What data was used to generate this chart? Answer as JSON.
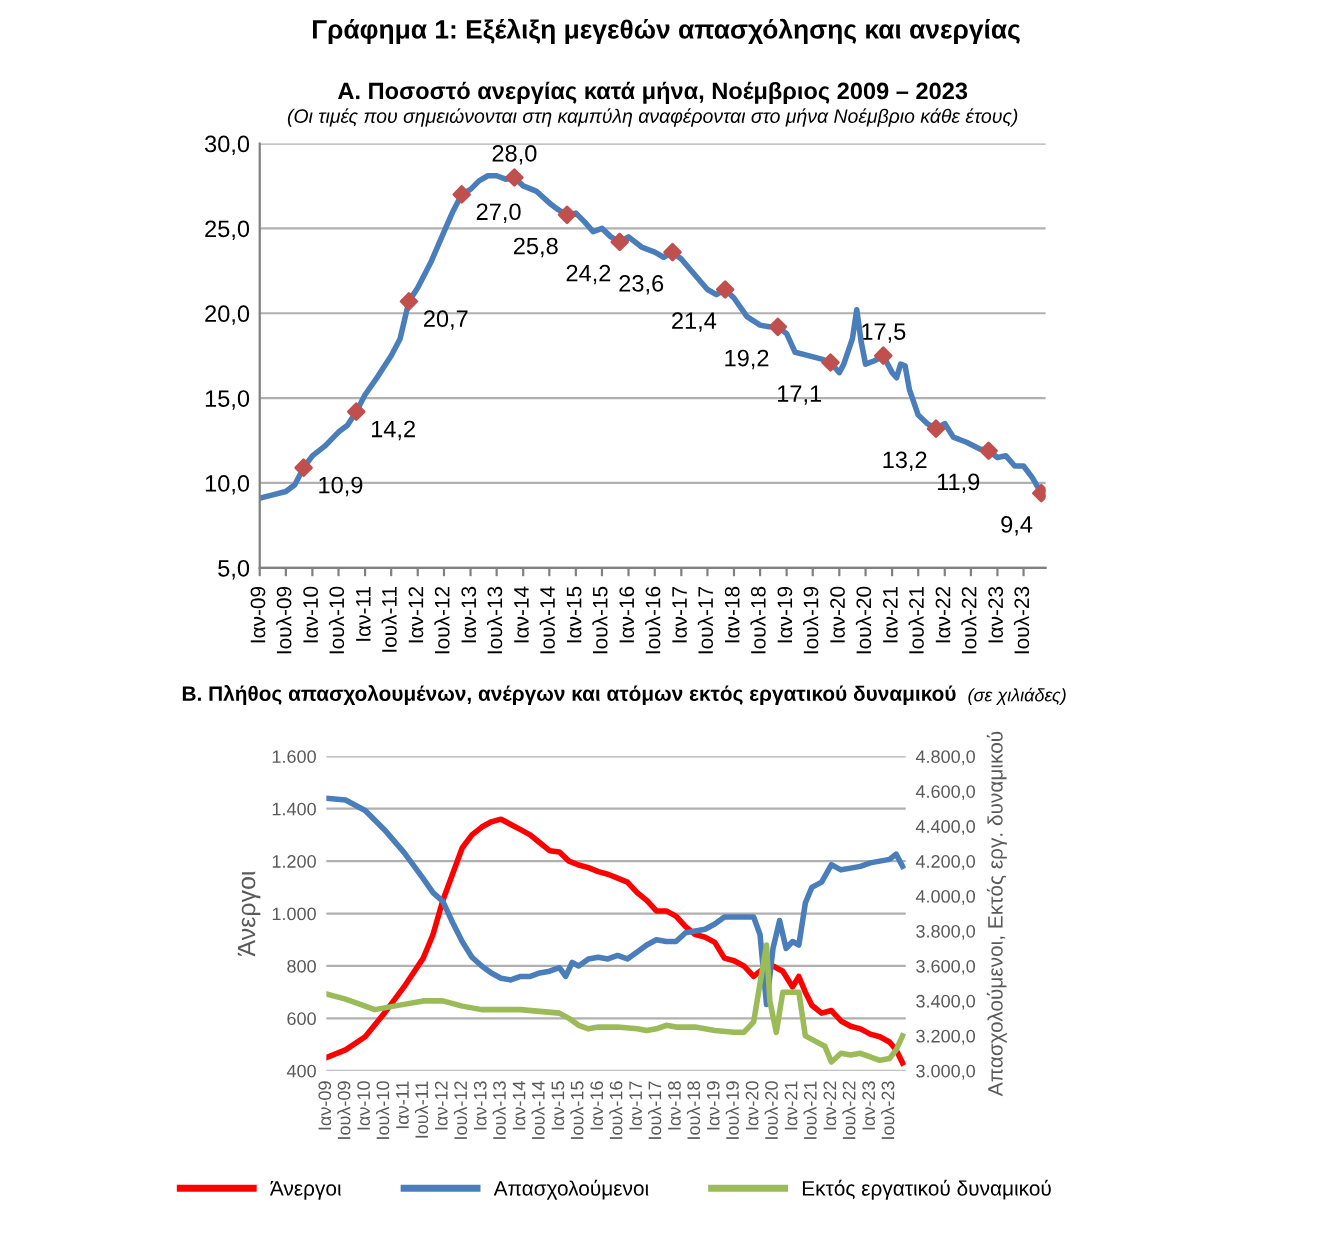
{
  "chart_data": [
    {
      "type": "line",
      "title": "Α. Ποσοστό ανεργίας κατά μήνα, Νοέμβριος 2009 – 2023",
      "subtitle": "(Οι τιμές που σημειώνονται στη καμπύλη αναφέρονται στο μήνα Νοέμβριο κάθε έτους)",
      "annotations": [
        "Γράφημα 1: Εξέλιξη μεγεθών απασχόλησης και ανεργίας"
      ],
      "grid": "y",
      "legend": false,
      "xlim": [
        "2009-01",
        "2023-12"
      ],
      "xticks": [
        {
          "value": "2009-01",
          "label": "Ιαν-09"
        },
        {
          "value": "2009-07",
          "label": "Ιουλ-09"
        },
        {
          "value": "2010-01",
          "label": "Ιαν-10"
        },
        {
          "value": "2010-07",
          "label": "Ιουλ-10"
        },
        {
          "value": "2011-01",
          "label": "Ιαν-11"
        },
        {
          "value": "2011-07",
          "label": "Ιουλ-11"
        },
        {
          "value": "2012-01",
          "label": "Ιαν-12"
        },
        {
          "value": "2012-07",
          "label": "Ιουλ-12"
        },
        {
          "value": "2013-01",
          "label": "Ιαν-13"
        },
        {
          "value": "2013-07",
          "label": "Ιουλ-13"
        },
        {
          "value": "2014-01",
          "label": "Ιαν-14"
        },
        {
          "value": "2014-07",
          "label": "Ιουλ-14"
        },
        {
          "value": "2015-01",
          "label": "Ιαν-15"
        },
        {
          "value": "2015-07",
          "label": "Ιουλ-15"
        },
        {
          "value": "2016-01",
          "label": "Ιαν-16"
        },
        {
          "value": "2016-07",
          "label": "Ιουλ-16"
        },
        {
          "value": "2017-01",
          "label": "Ιαν-17"
        },
        {
          "value": "2017-07",
          "label": "Ιουλ-17"
        },
        {
          "value": "2018-01",
          "label": "Ιαν-18"
        },
        {
          "value": "2018-07",
          "label": "Ιουλ-18"
        },
        {
          "value": "2019-01",
          "label": "Ιαν-19"
        },
        {
          "value": "2019-07",
          "label": "Ιουλ-19"
        },
        {
          "value": "2020-01",
          "label": "Ιαν-20"
        },
        {
          "value": "2020-07",
          "label": "Ιουλ-20"
        },
        {
          "value": "2021-01",
          "label": "Ιαν-21"
        },
        {
          "value": "2021-07",
          "label": "Ιουλ-21"
        },
        {
          "value": "2022-01",
          "label": "Ιαν-22"
        },
        {
          "value": "2022-07",
          "label": "Ιουλ-22"
        },
        {
          "value": "2023-01",
          "label": "Ιαν-23"
        },
        {
          "value": "2023-07",
          "label": "Ιουλ-23"
        }
      ],
      "ylim": [
        5,
        30
      ],
      "yticks": [
        {
          "value": 5,
          "label": "5,0"
        },
        {
          "value": 10,
          "label": "10,0"
        },
        {
          "value": 15,
          "label": "15,0"
        },
        {
          "value": 20,
          "label": "20,0"
        },
        {
          "value": 25,
          "label": "25,0"
        },
        {
          "value": 30,
          "label": "30,0"
        }
      ],
      "series": [
        {
          "color": "#4a7ebb",
          "x": [
            "2009-01",
            "2009-04",
            "2009-07",
            "2009-09",
            "2009-11",
            "2010-01",
            "2010-04",
            "2010-07",
            "2010-09",
            "2010-11",
            "2011-01",
            "2011-04",
            "2011-07",
            "2011-09",
            "2011-11",
            "2012-01",
            "2012-04",
            "2012-07",
            "2012-09",
            "2012-11",
            "2013-01",
            "2013-03",
            "2013-05",
            "2013-07",
            "2013-09",
            "2013-11",
            "2014-01",
            "2014-04",
            "2014-07",
            "2014-09",
            "2014-11",
            "2015-01",
            "2015-03",
            "2015-05",
            "2015-07",
            "2015-09",
            "2015-11",
            "2016-01",
            "2016-04",
            "2016-07",
            "2016-09",
            "2016-11",
            "2017-01",
            "2017-04",
            "2017-07",
            "2017-09",
            "2017-11",
            "2018-01",
            "2018-04",
            "2018-07",
            "2018-09",
            "2018-11",
            "2019-01",
            "2019-03",
            "2019-06",
            "2019-09",
            "2019-11",
            "2020-01",
            "2020-02",
            "2020-04",
            "2020-05",
            "2020-06",
            "2020-07",
            "2020-09",
            "2020-11",
            "2021-01",
            "2021-02",
            "2021-03",
            "2021-04",
            "2021-05",
            "2021-07",
            "2021-09",
            "2021-11",
            "2022-01",
            "2022-03",
            "2022-06",
            "2022-09",
            "2022-11",
            "2023-01",
            "2023-03",
            "2023-05",
            "2023-07",
            "2023-09",
            "2023-11"
          ],
          "values": [
            9.1,
            9.3,
            9.5,
            9.9,
            10.9,
            11.6,
            12.2,
            13.0,
            13.4,
            14.2,
            15.2,
            16.3,
            17.5,
            18.5,
            20.7,
            21.5,
            23.0,
            24.8,
            26.0,
            27.0,
            27.3,
            27.8,
            28.1,
            28.1,
            27.9,
            28.0,
            27.5,
            27.2,
            26.5,
            26.1,
            25.8,
            25.9,
            25.4,
            24.8,
            25.0,
            24.5,
            24.2,
            24.5,
            23.9,
            23.6,
            23.3,
            23.6,
            23.2,
            22.3,
            21.4,
            21.1,
            21.4,
            20.9,
            19.8,
            19.3,
            19.2,
            19.2,
            18.8,
            17.7,
            17.5,
            17.3,
            17.1,
            16.5,
            17.0,
            18.5,
            20.2,
            18.3,
            17.0,
            17.2,
            17.5,
            16.5,
            16.2,
            17.0,
            16.9,
            15.5,
            14.0,
            13.5,
            13.2,
            13.5,
            12.7,
            12.4,
            12.0,
            11.9,
            11.5,
            11.6,
            11.0,
            11.0,
            10.3,
            9.4
          ]
        },
        {
          "type": "scatter",
          "color": "#c0504d",
          "marker": "diamond",
          "x": [
            "2009-11",
            "2010-11",
            "2011-11",
            "2012-11",
            "2013-11",
            "2014-11",
            "2015-11",
            "2016-11",
            "2017-11",
            "2018-11",
            "2019-11",
            "2020-11",
            "2021-11",
            "2022-11",
            "2023-11"
          ],
          "values": [
            10.9,
            14.2,
            20.7,
            27.0,
            28.0,
            25.8,
            24.2,
            23.6,
            21.4,
            19.2,
            17.1,
            17.5,
            13.2,
            11.9,
            9.4
          ],
          "value_labels": [
            "10,9",
            "14,2",
            "20,7",
            "27,0",
            "28,0",
            "25,8",
            "24,2",
            "23,6",
            "21,4",
            "19,2",
            "17,1",
            "17,5",
            "13,2",
            "11,9",
            "9,4"
          ]
        }
      ]
    },
    {
      "type": "line",
      "title": "Β. Πλήθος απασχολουμένων, ανέργων και ατόμων εκτός εργατικού δυναμικού",
      "subtitle": "(σε χιλιάδες)",
      "ylabel": "Άνεργοι",
      "y2label": "Απασχολούμενοι, Εκτός εργ. δυναμικού",
      "grid": "y",
      "legend": "bottom",
      "xlim": [
        "2009-01",
        "2023-12"
      ],
      "xticks": [
        {
          "value": "2009-01",
          "label": "Ιαν-09"
        },
        {
          "value": "2009-07",
          "label": "Ιουλ-09"
        },
        {
          "value": "2010-01",
          "label": "Ιαν-10"
        },
        {
          "value": "2010-07",
          "label": "Ιουλ-10"
        },
        {
          "value": "2011-01",
          "label": "Ιαν-11"
        },
        {
          "value": "2011-07",
          "label": "Ιουλ-11"
        },
        {
          "value": "2012-01",
          "label": "Ιαν-12"
        },
        {
          "value": "2012-07",
          "label": "Ιουλ-12"
        },
        {
          "value": "2013-01",
          "label": "Ιαν-13"
        },
        {
          "value": "2013-07",
          "label": "Ιουλ-13"
        },
        {
          "value": "2014-01",
          "label": "Ιαν-14"
        },
        {
          "value": "2014-07",
          "label": "Ιουλ-14"
        },
        {
          "value": "2015-01",
          "label": "Ιαν-15"
        },
        {
          "value": "2015-07",
          "label": "Ιουλ-15"
        },
        {
          "value": "2016-01",
          "label": "Ιαν-16"
        },
        {
          "value": "2016-07",
          "label": "Ιουλ-16"
        },
        {
          "value": "2017-01",
          "label": "Ιαν-17"
        },
        {
          "value": "2017-07",
          "label": "Ιουλ-17"
        },
        {
          "value": "2018-01",
          "label": "Ιαν-18"
        },
        {
          "value": "2018-07",
          "label": "Ιουλ-18"
        },
        {
          "value": "2019-01",
          "label": "Ιαν-19"
        },
        {
          "value": "2019-07",
          "label": "Ιουλ-19"
        },
        {
          "value": "2020-01",
          "label": "Ιαν-20"
        },
        {
          "value": "2020-07",
          "label": "Ιουλ-20"
        },
        {
          "value": "2021-01",
          "label": "Ιαν-21"
        },
        {
          "value": "2021-07",
          "label": "Ιουλ-21"
        },
        {
          "value": "2022-01",
          "label": "Ιαν-22"
        },
        {
          "value": "2022-07",
          "label": "Ιουλ-22"
        },
        {
          "value": "2023-01",
          "label": "Ιαν-23"
        },
        {
          "value": "2023-07",
          "label": "Ιουλ-23"
        }
      ],
      "ylim": [
        400,
        1600
      ],
      "yticks": [
        {
          "value": 400,
          "label": "400"
        },
        {
          "value": 600,
          "label": "600"
        },
        {
          "value": 800,
          "label": "800"
        },
        {
          "value": 1000,
          "label": "1.000"
        },
        {
          "value": 1200,
          "label": "1.200"
        },
        {
          "value": 1400,
          "label": "1.400"
        },
        {
          "value": 1600,
          "label": "1.600"
        }
      ],
      "y2lim": [
        3000,
        4800
      ],
      "y2ticks": [
        {
          "value": 3000,
          "label": "3.000,0"
        },
        {
          "value": 3200,
          "label": "3.200,0"
        },
        {
          "value": 3400,
          "label": "3.400,0"
        },
        {
          "value": 3600,
          "label": "3.600,0"
        },
        {
          "value": 3800,
          "label": "3.800,0"
        },
        {
          "value": 4000,
          "label": "4.000,0"
        },
        {
          "value": 4200,
          "label": "4.200,0"
        },
        {
          "value": 4400,
          "label": "4.400,0"
        },
        {
          "value": 4600,
          "label": "4.600,0"
        },
        {
          "value": 4800,
          "label": "4.800,0"
        }
      ],
      "series": [
        {
          "type": "line",
          "name": "Άνεργοι",
          "color": "#ff0000",
          "x": [
            "2009-01",
            "2009-07",
            "2010-01",
            "2010-07",
            "2011-01",
            "2011-07",
            "2011-10",
            "2012-01",
            "2012-04",
            "2012-07",
            "2012-10",
            "2013-01",
            "2013-04",
            "2013-07",
            "2013-10",
            "2014-01",
            "2014-04",
            "2014-07",
            "2014-10",
            "2015-01",
            "2015-04",
            "2015-07",
            "2015-10",
            "2016-01",
            "2016-04",
            "2016-07",
            "2016-10",
            "2017-01",
            "2017-04",
            "2017-07",
            "2017-10",
            "2018-01",
            "2018-04",
            "2018-07",
            "2018-10",
            "2019-01",
            "2019-04",
            "2019-07",
            "2019-10",
            "2020-01",
            "2020-04",
            "2020-07",
            "2020-10",
            "2021-01",
            "2021-03",
            "2021-05",
            "2021-07",
            "2021-10",
            "2022-01",
            "2022-04",
            "2022-07",
            "2022-10",
            "2023-01",
            "2023-04",
            "2023-07",
            "2023-09",
            "2023-11"
          ],
          "values": [
            450,
            480,
            530,
            620,
            720,
            830,
            920,
            1050,
            1150,
            1250,
            1300,
            1330,
            1350,
            1360,
            1340,
            1320,
            1300,
            1270,
            1240,
            1235,
            1200,
            1185,
            1175,
            1160,
            1150,
            1135,
            1120,
            1080,
            1050,
            1010,
            1010,
            990,
            950,
            920,
            910,
            890,
            830,
            820,
            800,
            760,
            790,
            800,
            780,
            720,
            760,
            700,
            650,
            620,
            630,
            590,
            570,
            560,
            540,
            530,
            510,
            480,
            430
          ]
        },
        {
          "type": "line",
          "name": "Απασχολούμενοι",
          "color": "#4a7ebb",
          "axis": "y2",
          "x": [
            "2009-01",
            "2009-07",
            "2010-01",
            "2010-07",
            "2011-01",
            "2011-07",
            "2011-10",
            "2012-01",
            "2012-04",
            "2012-07",
            "2012-10",
            "2013-01",
            "2013-04",
            "2013-07",
            "2013-10",
            "2014-01",
            "2014-04",
            "2014-07",
            "2014-10",
            "2015-01",
            "2015-03",
            "2015-05",
            "2015-07",
            "2015-10",
            "2016-01",
            "2016-04",
            "2016-07",
            "2016-10",
            "2017-01",
            "2017-04",
            "2017-07",
            "2017-10",
            "2018-01",
            "2018-04",
            "2018-07",
            "2018-10",
            "2019-01",
            "2019-04",
            "2019-07",
            "2019-10",
            "2020-01",
            "2020-03",
            "2020-05",
            "2020-07",
            "2020-09",
            "2020-11",
            "2021-01",
            "2021-03",
            "2021-05",
            "2021-07",
            "2021-10",
            "2022-01",
            "2022-04",
            "2022-07",
            "2022-10",
            "2023-01",
            "2023-04",
            "2023-07",
            "2023-09",
            "2023-11"
          ],
          "values": [
            4560,
            4550,
            4490,
            4380,
            4250,
            4100,
            4020,
            3970,
            3850,
            3740,
            3650,
            3600,
            3560,
            3530,
            3520,
            3540,
            3540,
            3560,
            3570,
            3590,
            3540,
            3620,
            3600,
            3640,
            3650,
            3640,
            3660,
            3640,
            3680,
            3720,
            3750,
            3740,
            3740,
            3790,
            3800,
            3810,
            3840,
            3880,
            3880,
            3880,
            3880,
            3780,
            3380,
            3700,
            3860,
            3700,
            3740,
            3720,
            3960,
            4050,
            4080,
            4180,
            4150,
            4160,
            4170,
            4190,
            4200,
            4210,
            4240,
            4170
          ]
        },
        {
          "type": "line",
          "name": "Εκτός εργατικού δυναμικού",
          "color": "#9bbb59",
          "axis": "y2",
          "x": [
            "2009-01",
            "2009-07",
            "2010-01",
            "2010-04",
            "2010-07",
            "2011-01",
            "2011-07",
            "2012-01",
            "2012-07",
            "2013-01",
            "2013-07",
            "2014-01",
            "2014-07",
            "2015-01",
            "2015-04",
            "2015-07",
            "2015-10",
            "2016-01",
            "2016-07",
            "2017-01",
            "2017-04",
            "2017-07",
            "2017-10",
            "2018-01",
            "2018-07",
            "2019-01",
            "2019-07",
            "2019-10",
            "2020-01",
            "2020-03",
            "2020-05",
            "2020-06",
            "2020-08",
            "2020-10",
            "2020-12",
            "2021-03",
            "2021-05",
            "2021-08",
            "2021-11",
            "2022-01",
            "2022-04",
            "2022-07",
            "2022-10",
            "2023-01",
            "2023-04",
            "2023-07",
            "2023-09",
            "2023-11"
          ],
          "values": [
            3440,
            3410,
            3370,
            3350,
            3360,
            3380,
            3400,
            3400,
            3370,
            3350,
            3350,
            3350,
            3340,
            3330,
            3300,
            3260,
            3240,
            3250,
            3250,
            3240,
            3230,
            3240,
            3260,
            3250,
            3250,
            3230,
            3220,
            3220,
            3280,
            3500,
            3720,
            3400,
            3220,
            3450,
            3450,
            3450,
            3200,
            3170,
            3140,
            3050,
            3100,
            3090,
            3100,
            3080,
            3060,
            3070,
            3120,
            3200
          ]
        }
      ]
    }
  ]
}
